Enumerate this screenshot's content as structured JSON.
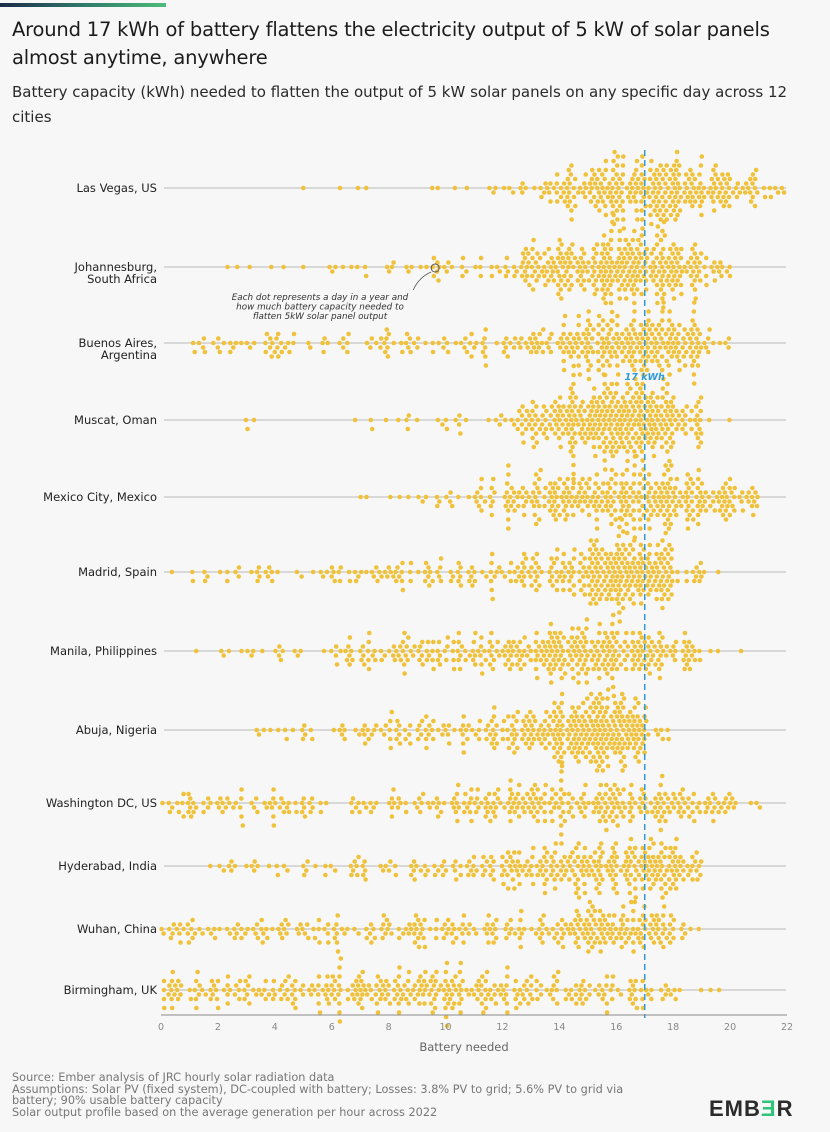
{
  "header": {
    "title": "Around 17 kWh of battery flattens the electricity output of 5 kW of solar panels almost anytime, anywhere",
    "subtitle": "Battery capacity (kWh) needed to flatten the output of 5 kW solar panels on any specific day across 12 cities"
  },
  "chart_data": {
    "type": "scatter",
    "subtype": "beeswarm",
    "title": "Around 17 kWh of battery flattens the electricity output of 5 kW of solar panels almost anytime, anywhere",
    "subtitle": "Battery capacity (kWh) needed to flatten the output of 5 kW solar panels on any specific day across 12 cities",
    "xlabel": "Battery needed",
    "ylabel": "",
    "xlim": [
      0,
      22
    ],
    "xticks": [
      0,
      2,
      4,
      6,
      8,
      10,
      12,
      14,
      16,
      18,
      20,
      22
    ],
    "grid": false,
    "dot_color": "#f0c23c",
    "reference_line": {
      "value": 17,
      "label": "17 kWh",
      "color": "#2f9ad6"
    },
    "annotation": "Each dot represents a day in a year and how much battery capacity needed to flatten 5kW solar panel output",
    "annotation_target": {
      "city": "Johannesburg, South Africa",
      "value": 9.6
    },
    "bin_note": "Approximate number of days per 1 kWh bin, bins start at 0 (0-1, 1-2, ... 21-22)",
    "cities": [
      {
        "name": "Las Vegas, US",
        "label_lines": [
          "Las Vegas, US"
        ],
        "days_per_kwh_bin": [
          0,
          0,
          0,
          0,
          0,
          1,
          2,
          1,
          0,
          2,
          2,
          3,
          7,
          14,
          28,
          42,
          50,
          50,
          46,
          34,
          20,
          8
        ]
      },
      {
        "name": "Johannesburg, South Africa",
        "label_lines": [
          "Johannesburg,",
          "South Africa"
        ],
        "days_per_kwh_bin": [
          0,
          0,
          2,
          2,
          1,
          2,
          5,
          3,
          6,
          10,
          7,
          8,
          20,
          34,
          42,
          55,
          60,
          52,
          40,
          16,
          0,
          0
        ]
      },
      {
        "name": "Buenos Aires, Argentina",
        "label_lines": [
          "Buenos Aires,",
          "Argentina"
        ],
        "days_per_kwh_bin": [
          0,
          8,
          8,
          10,
          12,
          6,
          6,
          12,
          10,
          8,
          10,
          10,
          14,
          18,
          34,
          44,
          48,
          52,
          44,
          10,
          0,
          0
        ]
      },
      {
        "name": "Muscat, Oman",
        "label_lines": [
          "Muscat, Oman"
        ],
        "days_per_kwh_bin": [
          0,
          0,
          1,
          2,
          0,
          0,
          1,
          3,
          4,
          3,
          7,
          4,
          16,
          34,
          54,
          70,
          72,
          62,
          30,
          2,
          0,
          0
        ]
      },
      {
        "name": "Mexico City, Mexico",
        "label_lines": [
          "Mexico City, Mexico"
        ],
        "days_per_kwh_bin": [
          0,
          0,
          0,
          0,
          0,
          0,
          0,
          2,
          3,
          6,
          6,
          16,
          26,
          34,
          34,
          40,
          46,
          48,
          38,
          30,
          20,
          0
        ]
      },
      {
        "name": "Madrid, Spain",
        "label_lines": [
          "Madrid, Spain"
        ],
        "days_per_kwh_bin": [
          1,
          5,
          6,
          10,
          3,
          4,
          12,
          10,
          14,
          14,
          14,
          14,
          18,
          24,
          30,
          60,
          68,
          54,
          12,
          2,
          0,
          0
        ]
      },
      {
        "name": "Manila, Philippines",
        "label_lines": [
          "Manila, Philippines"
        ],
        "days_per_kwh_bin": [
          0,
          1,
          4,
          4,
          8,
          2,
          12,
          16,
          20,
          20,
          20,
          22,
          28,
          38,
          46,
          44,
          32,
          28,
          22,
          2,
          1,
          0
        ]
      },
      {
        "name": "Abuja, Nigeria",
        "label_lines": [
          "Abuja, Nigeria"
        ],
        "days_per_kwh_bin": [
          0,
          0,
          0,
          4,
          6,
          4,
          8,
          12,
          16,
          18,
          14,
          18,
          30,
          38,
          56,
          70,
          62,
          9,
          0,
          0,
          0,
          0
        ]
      },
      {
        "name": "Washington DC, US",
        "label_lines": [
          "Washington DC, US"
        ],
        "days_per_kwh_bin": [
          12,
          12,
          14,
          12,
          12,
          10,
          6,
          6,
          12,
          14,
          18,
          22,
          24,
          28,
          28,
          30,
          26,
          26,
          22,
          18,
          6,
          1
        ]
      },
      {
        "name": "Hyderabad, India",
        "label_lines": [
          "Hyderabad, India"
        ],
        "days_per_kwh_bin": [
          0,
          1,
          6,
          6,
          4,
          8,
          8,
          8,
          10,
          10,
          14,
          14,
          26,
          30,
          34,
          36,
          36,
          44,
          28,
          0,
          0,
          0
        ]
      },
      {
        "name": "Wuhan, China",
        "label_lines": [
          "Wuhan, China"
        ],
        "days_per_kwh_bin": [
          14,
          10,
          10,
          12,
          12,
          12,
          12,
          14,
          14,
          16,
          16,
          14,
          14,
          16,
          26,
          38,
          32,
          28,
          8,
          0,
          0,
          0
        ]
      },
      {
        "name": "Birmingham, UK",
        "label_lines": [
          "Birmingham, UK"
        ],
        "days_per_kwh_bin": [
          18,
          18,
          16,
          16,
          18,
          18,
          24,
          26,
          24,
          30,
          28,
          24,
          22,
          18,
          16,
          16,
          16,
          10,
          4,
          2,
          0,
          0
        ]
      }
    ]
  },
  "footer": {
    "lines": [
      "Source: Ember analysis of JRC hourly solar radiation data",
      "Assumptions: Solar PV (fixed system), DC-coupled with battery; Losses: 3.8% PV to grid; 5.6% PV to grid via",
      "battery; 90% usable battery capacity",
      "Solar output profile based on the average generation per hour across 2022"
    ],
    "logo": {
      "pre": "EMB",
      "mid": "Ǝ",
      "post": "R",
      "text": "EMBER"
    }
  }
}
